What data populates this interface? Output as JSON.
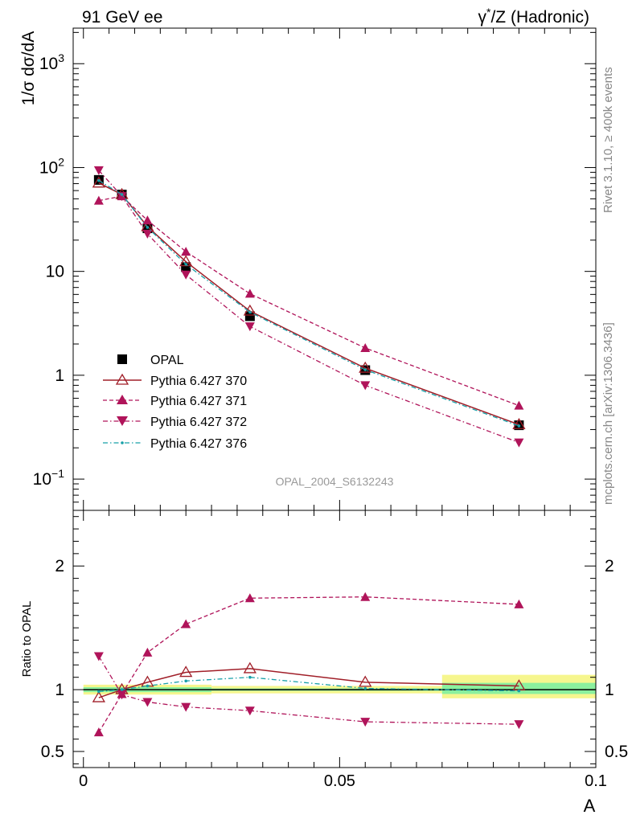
{
  "header": {
    "left": "91 GeV ee",
    "right_prefix": "γ",
    "right_sup": "*",
    "right_suffix": "/Z (Hadronic)"
  },
  "side_labels": {
    "rivet": "Rivet 3.1.10, ≥ 400k events",
    "mcplots": "mcplots.cern.ch [arXiv:1306.3436]"
  },
  "watermark": "OPAL_2004_S6132243",
  "chart_data": [
    {
      "type": "line",
      "log_y": true,
      "xlim": [
        -0.002,
        0.1
      ],
      "ylim": [
        0.05,
        2200
      ],
      "ylabel": "1/σ dσ/dA",
      "y_ticks": [
        {
          "value": 0.1,
          "base": "10",
          "exp": "−1"
        },
        {
          "value": 1,
          "base": "1",
          "exp": ""
        },
        {
          "value": 10,
          "base": "10",
          "exp": ""
        },
        {
          "value": 100,
          "base": "10",
          "exp": "2"
        },
        {
          "value": 1000,
          "base": "10",
          "exp": "3"
        }
      ],
      "x": [
        0.003,
        0.0075,
        0.0125,
        0.02,
        0.0325,
        0.055,
        0.085
      ],
      "series": [
        {
          "name": "OPAL",
          "color": "#000000",
          "values": [
            76,
            55,
            26,
            11,
            3.7,
            1.12,
            0.33
          ]
        },
        {
          "name": "Pythia 6.427 370",
          "color": "#a01e28",
          "values": [
            71,
            55,
            27,
            12.4,
            4.15,
            1.17,
            0.335
          ]
        },
        {
          "name": "Pythia 6.427 371",
          "color": "#b0145a",
          "values": [
            48,
            53,
            31,
            15.5,
            6.1,
            1.83,
            0.51
          ]
        },
        {
          "name": "Pythia 6.427 372",
          "color": "#b0145a",
          "values": [
            94,
            53,
            23,
            9.3,
            2.95,
            0.8,
            0.225
          ]
        },
        {
          "name": "Pythia 6.427 376",
          "color": "#17a0a8",
          "values": [
            75,
            55,
            26.5,
            11.7,
            4.05,
            1.13,
            0.325
          ]
        }
      ]
    },
    {
      "type": "line",
      "xlim": [
        -0.002,
        0.1
      ],
      "ylim": [
        0.37,
        2.45
      ],
      "xlabel": "A",
      "ylabel": "Ratio to OPAL",
      "x_ticks": [
        {
          "value": 0,
          "label": "0"
        },
        {
          "value": 0.05,
          "label": "0.05"
        },
        {
          "value": 0.1,
          "label": "0.1"
        }
      ],
      "y_ticks": [
        {
          "value": 0.5,
          "label": "0.5"
        },
        {
          "value": 1,
          "label": "1"
        },
        {
          "value": 2,
          "label": "2"
        }
      ],
      "x": [
        0.003,
        0.0075,
        0.0125,
        0.02,
        0.0325,
        0.055,
        0.085
      ],
      "series": [
        {
          "name": "Pythia 6.427 370",
          "values": [
            0.935,
            1.0,
            1.06,
            1.14,
            1.17,
            1.06,
            1.03
          ]
        },
        {
          "name": "Pythia 6.427 371",
          "values": [
            0.655,
            0.965,
            1.3,
            1.53,
            1.74,
            1.75,
            1.69
          ]
        },
        {
          "name": "Pythia 6.427 372",
          "values": [
            1.27,
            0.96,
            0.9,
            0.86,
            0.83,
            0.74,
            0.72
          ]
        },
        {
          "name": "Pythia 6.427 376",
          "values": [
            0.985,
            1.0,
            1.03,
            1.07,
            1.1,
            1.01,
            0.99
          ]
        }
      ],
      "bands": [
        {
          "x0": 0.0,
          "x1": 0.025,
          "yellow": [
            0.96,
            1.04
          ],
          "green": [
            0.98,
            1.02
          ]
        },
        {
          "x0": 0.025,
          "x1": 0.07,
          "yellow": [
            0.97,
            1.03
          ],
          "green": [
            0.99,
            1.01
          ]
        },
        {
          "x0": 0.07,
          "x1": 0.1,
          "yellow": [
            0.93,
            1.12
          ],
          "green": [
            0.965,
            1.055
          ]
        }
      ]
    }
  ]
}
